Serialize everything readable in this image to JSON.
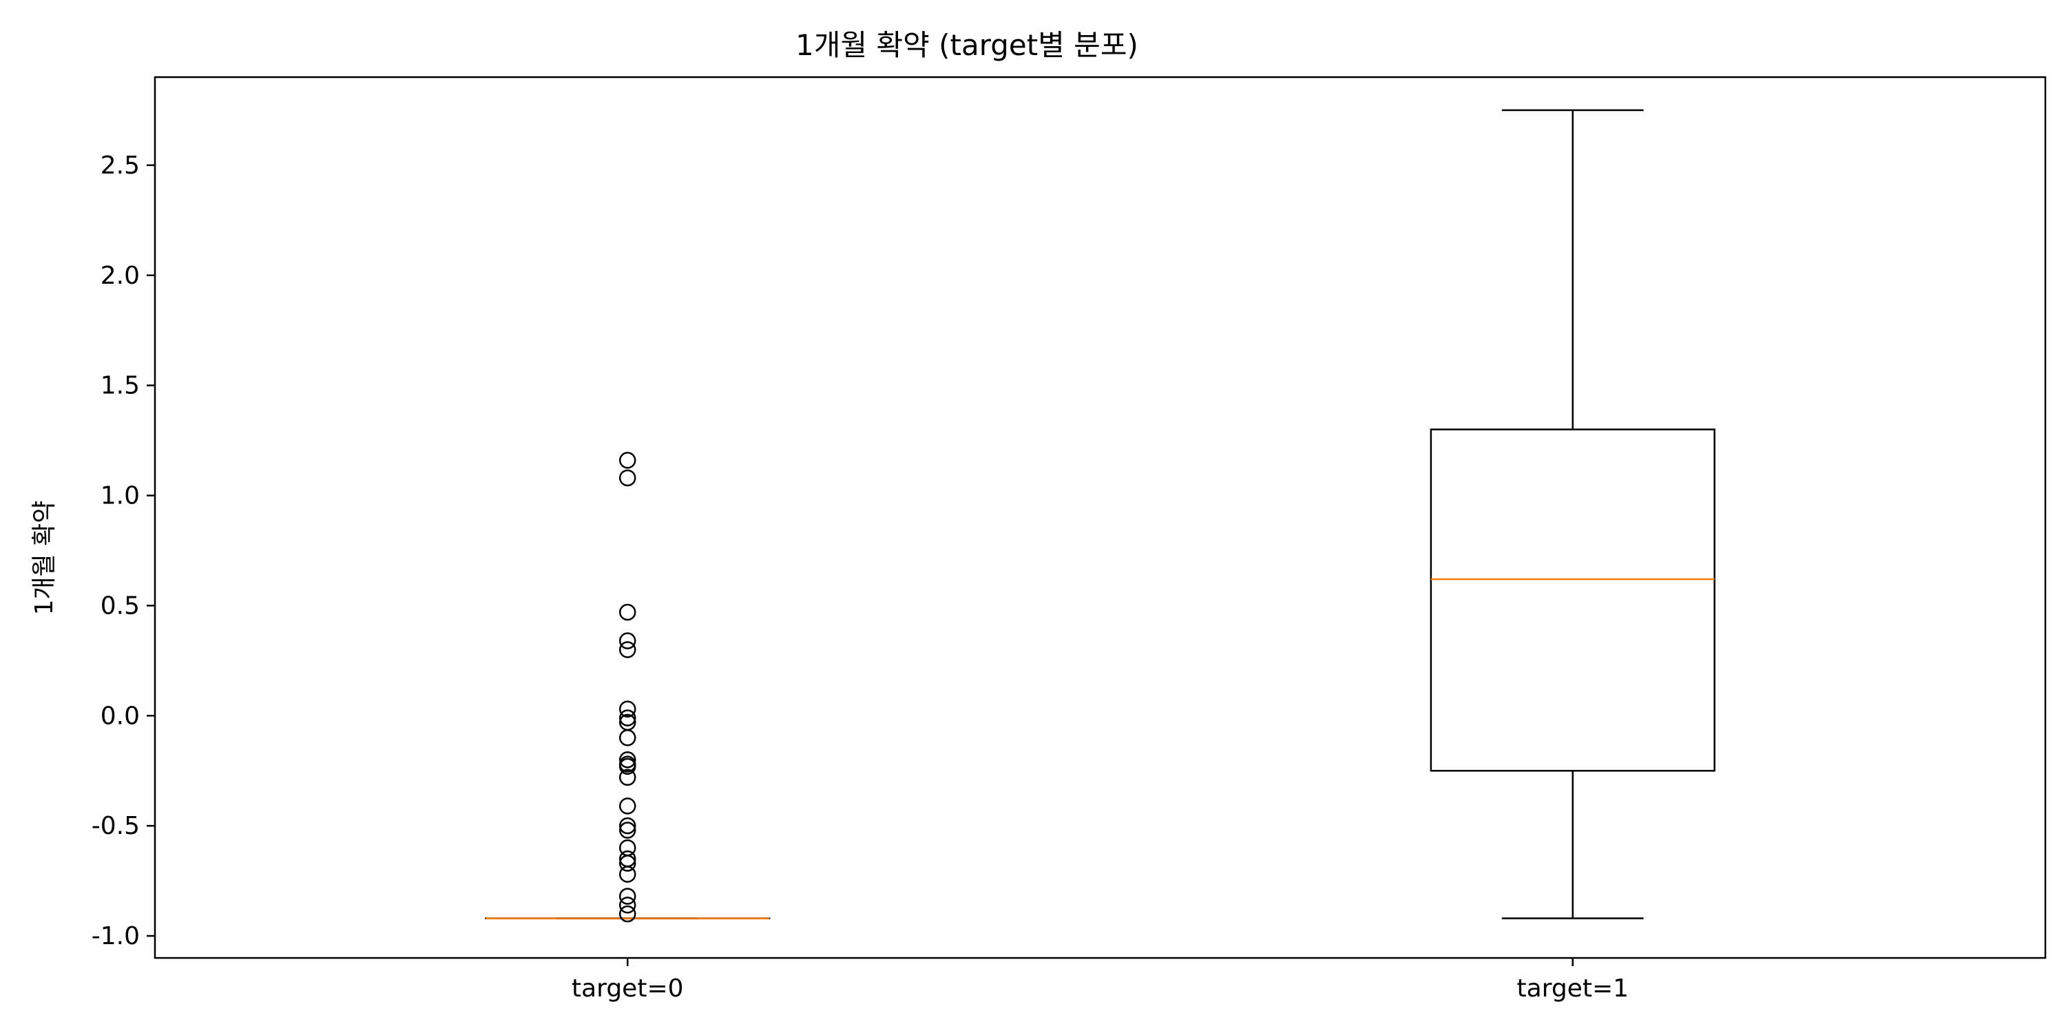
{
  "chart_data": {
    "type": "boxplot",
    "title": "1개월 확약 (target별 분포)",
    "xlabel": "",
    "ylabel": "1개월 확약",
    "categories": [
      "target=0",
      "target=1"
    ],
    "ylim": [
      -1.1,
      2.9
    ],
    "yticks": [
      -1.0,
      -0.5,
      0.0,
      0.5,
      1.0,
      1.5,
      2.0,
      2.5
    ],
    "ytick_labels": [
      "-1.0",
      "-0.5",
      "0.0",
      "0.5",
      "1.0",
      "1.5",
      "2.0",
      "2.5"
    ],
    "grid": false,
    "boxes": [
      {
        "category": "target=0",
        "whisker_low": -0.92,
        "q1": -0.92,
        "median": -0.92,
        "q3": -0.92,
        "whisker_high": -0.92,
        "fliers": [
          1.16,
          1.08,
          0.47,
          0.34,
          0.3,
          0.03,
          -0.01,
          -0.03,
          -0.1,
          -0.2,
          -0.22,
          -0.23,
          -0.28,
          -0.41,
          -0.5,
          -0.52,
          -0.6,
          -0.65,
          -0.67,
          -0.72,
          -0.82,
          -0.86,
          -0.9
        ]
      },
      {
        "category": "target=1",
        "whisker_low": -0.92,
        "q1": -0.25,
        "median": 0.62,
        "q3": 1.3,
        "whisker_high": 2.75,
        "fliers": []
      }
    ],
    "colors": {
      "box": "#000000",
      "median": "#ff7f0e",
      "flier": "#000000"
    }
  }
}
